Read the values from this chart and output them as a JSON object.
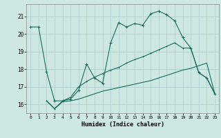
{
  "xlabel": "Humidex (Indice chaleur)",
  "background_color": "#cce8e0",
  "grid_color": "#aacccc",
  "line_color": "#1a6b5a",
  "xlim": [
    -0.5,
    23.5
  ],
  "ylim": [
    15.5,
    21.7
  ],
  "yticks": [
    16,
    17,
    18,
    19,
    20,
    21
  ],
  "xticks": [
    0,
    1,
    2,
    3,
    4,
    5,
    6,
    7,
    8,
    9,
    10,
    11,
    12,
    13,
    14,
    15,
    16,
    17,
    18,
    19,
    20,
    21,
    22,
    23
  ],
  "line1_x": [
    0,
    1,
    2,
    3,
    4,
    5,
    6,
    7,
    8,
    9,
    10,
    11,
    12,
    13,
    14,
    15,
    16,
    17,
    18,
    19,
    20,
    21,
    22,
    23
  ],
  "line1_y": [
    20.4,
    20.4,
    17.85,
    16.2,
    16.2,
    16.3,
    16.8,
    18.3,
    17.5,
    17.2,
    19.5,
    20.65,
    20.4,
    20.6,
    20.5,
    21.15,
    21.3,
    21.1,
    20.75,
    19.8,
    19.2,
    17.8,
    17.5,
    16.6
  ],
  "line2_x": [
    2,
    3,
    4,
    5,
    6,
    7,
    8,
    9,
    10,
    11,
    12,
    13,
    14,
    15,
    16,
    17,
    18,
    19,
    20,
    21,
    22,
    23
  ],
  "line2_y": [
    16.2,
    15.75,
    16.15,
    16.2,
    16.3,
    16.45,
    16.6,
    16.75,
    16.85,
    16.95,
    17.05,
    17.15,
    17.25,
    17.35,
    17.5,
    17.65,
    17.8,
    17.95,
    18.05,
    18.2,
    18.35,
    16.6
  ],
  "line3_x": [
    2,
    3,
    4,
    5,
    6,
    7,
    8,
    9,
    10,
    11,
    12,
    13,
    14,
    15,
    16,
    17,
    18,
    19,
    20,
    21,
    22,
    23
  ],
  "line3_y": [
    16.2,
    15.75,
    16.2,
    16.4,
    17.0,
    17.3,
    17.55,
    17.75,
    17.95,
    18.1,
    18.35,
    18.55,
    18.7,
    18.9,
    19.1,
    19.3,
    19.5,
    19.2,
    19.2,
    17.8,
    17.5,
    16.6
  ]
}
